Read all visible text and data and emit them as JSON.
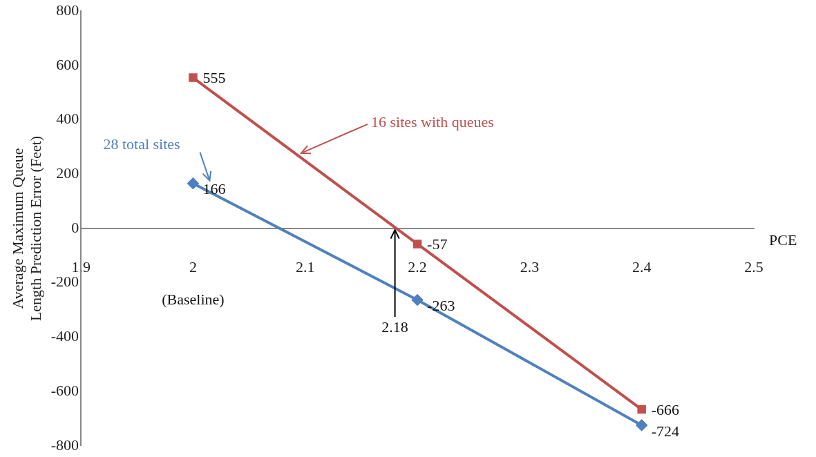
{
  "chart_data": {
    "type": "line",
    "xlabel": "PCE",
    "ylabel": "Average Maximum Queue Length Prediction Error (Feet)",
    "x": [
      2,
      2.2,
      2.4
    ],
    "series": [
      {
        "name": "16 sites with queues",
        "color": "#c0504d",
        "values": [
          555,
          -57,
          -666
        ],
        "marker": "square"
      },
      {
        "name": "28 total sites",
        "color": "#4f81bd",
        "values": [
          166,
          -263,
          -724
        ],
        "marker": "diamond"
      }
    ],
    "xlim": [
      1.9,
      2.5
    ],
    "xticks": [
      1.9,
      2,
      2.1,
      2.2,
      2.3,
      2.4,
      2.5
    ],
    "ylim": [
      -800,
      800
    ],
    "yticks": [
      -800,
      -600,
      -400,
      -200,
      0,
      200,
      400,
      600,
      800
    ],
    "grid": false,
    "legend": false,
    "data_labels": true,
    "annotations": [
      "(Baseline)",
      {
        "text": "2.18",
        "x": 2.18,
        "y": 0
      }
    ]
  }
}
